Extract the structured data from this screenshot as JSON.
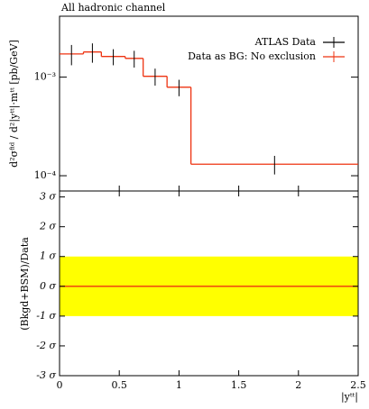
{
  "chart_data": {
    "type": "step",
    "title": "All hadronic channel",
    "ylabel": "d²σᶠⁱᵈ / d²|yᵗᵗ|·mᵗᵗ [pb/GeV]",
    "xlabel": "|yᵗᵗ|",
    "x": [
      0.1,
      0.275,
      0.45,
      0.625,
      0.8,
      1.0,
      1.8
    ],
    "bins": [
      0,
      0.2,
      0.35,
      0.55,
      0.7,
      0.9,
      1.1,
      2.5
    ],
    "series": [
      {
        "name": "ATLAS Data",
        "color": "#000000",
        "values": [
          0.00172,
          0.0018,
          0.00162,
          0.00155,
          0.00102,
          0.00079,
          0.000131
        ],
        "errors": [
          0.0004,
          0.0004,
          0.0003,
          0.0003,
          0.0002,
          0.00015,
          2.8e-05
        ]
      },
      {
        "name": "Data as BG: No exclusion",
        "color": "#ee3311",
        "values": [
          0.00172,
          0.0018,
          0.00162,
          0.00155,
          0.00102,
          0.00079,
          0.000131
        ]
      }
    ],
    "xlim": [
      0,
      2.5
    ],
    "xticks": [
      0,
      0.5,
      1,
      1.5,
      2,
      2.5
    ],
    "ylim": [
      7e-05,
      0.00415
    ],
    "log_y": true,
    "yticks": [
      {
        "value": 0.001,
        "label": "10⁻³"
      },
      {
        "value": 0.0001,
        "label": "10⁻⁴"
      }
    ],
    "legend": "upper right",
    "ratio": {
      "ylabel": "(Bkgd+BSM)/Data",
      "ylim": [
        -3,
        3.2
      ],
      "yticks": [
        {
          "value": 3,
          "label": "3 σ"
        },
        {
          "value": 2,
          "label": "2 σ"
        },
        {
          "value": 1,
          "label": "1 σ"
        },
        {
          "value": 0,
          "label": "0 σ"
        },
        {
          "value": -1,
          "label": "-1 σ"
        },
        {
          "value": -2,
          "label": "-2 σ"
        },
        {
          "value": -3,
          "label": "-3 σ"
        }
      ],
      "band": [
        -1,
        1
      ],
      "band_color": "#ffff00",
      "line_x": [
        0,
        2.5
      ],
      "line_values": [
        0,
        0
      ],
      "line_color": "#ee3311"
    }
  }
}
